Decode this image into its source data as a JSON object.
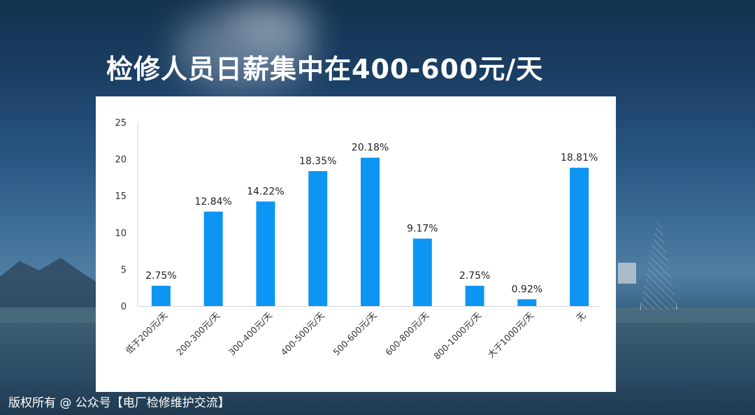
{
  "slide": {
    "title": "检修人员日薪集中在400-600元/天",
    "copyright": "版权所有 @ 公众号【电厂检修维护交流】"
  },
  "colors": {
    "bar": "#0c95f2",
    "axis": "#d0d4da",
    "tick_text": "#333333",
    "label_text": "#222222"
  },
  "chart_data": {
    "type": "bar",
    "title": "",
    "xlabel": "",
    "ylabel": "",
    "ylim": [
      0,
      25
    ],
    "yticks": [
      0,
      5,
      10,
      15,
      20,
      25
    ],
    "grid": false,
    "categories": [
      "低于200元/天",
      "200-300元/天",
      "300-400元/天",
      "400-500元/天",
      "500-600元/天",
      "600-800元/天",
      "800-1000元/天",
      "大于1000元/天",
      "无"
    ],
    "values": [
      2.75,
      12.84,
      14.22,
      18.35,
      20.18,
      9.17,
      2.75,
      0.92,
      18.81
    ],
    "data_labels": [
      "2.75%",
      "12.84%",
      "14.22%",
      "18.35%",
      "20.18%",
      "9.17%",
      "2.75%",
      "0.92%",
      "18.81%"
    ]
  }
}
